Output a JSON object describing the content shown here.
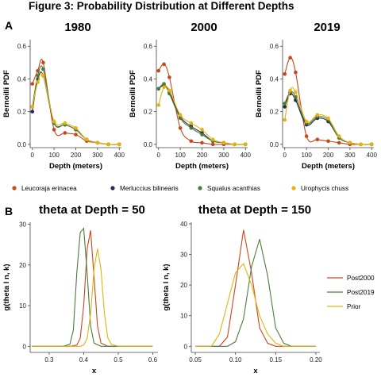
{
  "figure_title": "Figure 3: Probability Distribution at Different Depths",
  "panel_labels": [
    "A",
    "B"
  ],
  "colors": {
    "Leucoraja erinacea": "#c9461b",
    "Merluccius bilinearis": "#262a4f",
    "Squalus acanthias": "#4b7c3d",
    "Urophycis chuss": "#e5b20e",
    "Post2000": "#c9461b",
    "Post2019": "#4b7c3d",
    "Prior": "#e5b20e"
  },
  "chart_data": [
    {
      "type": "line",
      "title": "1980",
      "xlabel": "Depth (meters)",
      "ylabel": "Bernoilli PDF",
      "xlim": [
        -10,
        410
      ],
      "ylim": [
        -0.02,
        0.64
      ],
      "xticks": [
        0,
        100,
        200,
        300,
        400
      ],
      "yticks": [
        0.0,
        0.2,
        0.4,
        0.6
      ],
      "legend_position": "bottom",
      "series": [
        {
          "name": "Leucoraja erinacea",
          "x": [
            0,
            25,
            50,
            100,
            150,
            200,
            250,
            300,
            350,
            400
          ],
          "y": [
            0.37,
            0.45,
            0.5,
            0.09,
            0.07,
            0.06,
            0.02,
            0.01,
            0.0,
            0.0
          ]
        },
        {
          "name": "Merluccius bilinearis",
          "x": [
            0,
            25,
            50,
            100,
            150,
            200,
            250,
            300,
            350,
            400
          ],
          "y": [
            0.2,
            0.4,
            0.42,
            0.13,
            0.12,
            0.09,
            0.03,
            0.01,
            0.0,
            0.0
          ]
        },
        {
          "name": "Squalus acanthias",
          "x": [
            0,
            25,
            50,
            100,
            150,
            200,
            250,
            300,
            350,
            400
          ],
          "y": [
            0.23,
            0.42,
            0.46,
            0.13,
            0.12,
            0.09,
            0.03,
            0.01,
            0.0,
            0.0
          ]
        },
        {
          "name": "Urophycis chuss",
          "x": [
            0,
            25,
            50,
            100,
            150,
            200,
            250,
            300,
            350,
            400
          ],
          "y": [
            0.23,
            0.38,
            0.42,
            0.14,
            0.13,
            0.1,
            0.03,
            0.01,
            0.0,
            0.0
          ]
        }
      ]
    },
    {
      "type": "line",
      "title": "2000",
      "xlabel": "Depth (meters)",
      "ylabel": "Bernoilli PDF",
      "xlim": [
        -10,
        410
      ],
      "ylim": [
        -0.02,
        0.64
      ],
      "xticks": [
        0,
        100,
        200,
        300,
        400
      ],
      "yticks": [
        0.0,
        0.2,
        0.4,
        0.6
      ],
      "series": [
        {
          "name": "Leucoraja erinacea",
          "x": [
            0,
            25,
            50,
            100,
            150,
            200,
            250,
            300,
            350,
            400
          ],
          "y": [
            0.45,
            0.49,
            0.41,
            0.1,
            0.02,
            0.01,
            0.0,
            0.0,
            0.0,
            0.0
          ]
        },
        {
          "name": "Merluccius bilinearis",
          "x": [
            0,
            25,
            50,
            100,
            150,
            200,
            250,
            300,
            350,
            400
          ],
          "y": [
            0.34,
            0.36,
            0.32,
            0.17,
            0.11,
            0.07,
            0.02,
            0.01,
            0.0,
            0.0
          ]
        },
        {
          "name": "Squalus acanthias",
          "x": [
            0,
            25,
            50,
            100,
            150,
            200,
            250,
            300,
            350,
            400
          ],
          "y": [
            0.34,
            0.37,
            0.31,
            0.16,
            0.1,
            0.06,
            0.02,
            0.01,
            0.0,
            0.0
          ]
        },
        {
          "name": "Urophycis chuss",
          "x": [
            0,
            25,
            50,
            100,
            150,
            200,
            250,
            300,
            350,
            400
          ],
          "y": [
            0.24,
            0.35,
            0.33,
            0.18,
            0.13,
            0.09,
            0.03,
            0.01,
            0.0,
            0.0
          ]
        }
      ]
    },
    {
      "type": "line",
      "title": "2019",
      "xlabel": "Depth (meters)",
      "ylabel": "Bernoilli PDF",
      "xlim": [
        -10,
        410
      ],
      "ylim": [
        -0.02,
        0.64
      ],
      "xticks": [
        0,
        100,
        200,
        300,
        400
      ],
      "yticks": [
        0.0,
        0.2,
        0.4,
        0.6
      ],
      "series": [
        {
          "name": "Leucoraja erinacea",
          "x": [
            0,
            25,
            50,
            100,
            150,
            200,
            250,
            300,
            350,
            400
          ],
          "y": [
            0.43,
            0.53,
            0.44,
            0.05,
            0.03,
            0.02,
            0.01,
            0.0,
            0.0,
            0.0
          ]
        },
        {
          "name": "Merluccius bilinearis",
          "x": [
            0,
            25,
            50,
            100,
            150,
            200,
            250,
            300,
            350,
            400
          ],
          "y": [
            0.23,
            0.31,
            0.27,
            0.12,
            0.16,
            0.14,
            0.04,
            0.01,
            0.0,
            0.0
          ]
        },
        {
          "name": "Squalus acanthias",
          "x": [
            0,
            25,
            50,
            100,
            150,
            200,
            250,
            300,
            350,
            400
          ],
          "y": [
            0.25,
            0.32,
            0.29,
            0.13,
            0.17,
            0.15,
            0.04,
            0.01,
            0.0,
            0.0
          ]
        },
        {
          "name": "Urophycis chuss",
          "x": [
            0,
            25,
            50,
            100,
            150,
            200,
            250,
            300,
            350,
            400
          ],
          "y": [
            0.15,
            0.33,
            0.32,
            0.14,
            0.18,
            0.16,
            0.05,
            0.01,
            0.0,
            0.0
          ]
        }
      ]
    },
    {
      "type": "line",
      "title": "theta at Depth = 50",
      "xlabel": "x",
      "ylabel": "g(theta l n, k)",
      "xlim": [
        0.245,
        0.615
      ],
      "ylim": [
        -1.5,
        30.5
      ],
      "xticks": [
        0.3,
        0.4,
        0.5,
        0.6
      ],
      "yticks": [
        0,
        10,
        20,
        30
      ],
      "series": [
        {
          "name": "Post2000",
          "x": [
            0.25,
            0.36,
            0.38,
            0.39,
            0.4,
            0.41,
            0.42,
            0.43,
            0.44,
            0.45,
            0.47,
            0.6
          ],
          "y": [
            0,
            0,
            0.3,
            2,
            10,
            24,
            28.5,
            17,
            5,
            0.8,
            0,
            0
          ]
        },
        {
          "name": "Post2019",
          "x": [
            0.25,
            0.34,
            0.36,
            0.37,
            0.38,
            0.39,
            0.4,
            0.41,
            0.42,
            0.43,
            0.45,
            0.6
          ],
          "y": [
            0,
            0,
            0.5,
            4,
            18,
            28,
            29,
            18,
            5,
            0.8,
            0,
            0
          ]
        },
        {
          "name": "Prior",
          "x": [
            0.25,
            0.39,
            0.4,
            0.41,
            0.42,
            0.43,
            0.44,
            0.45,
            0.46,
            0.47,
            0.48,
            0.5,
            0.6
          ],
          "y": [
            0,
            0,
            0.3,
            2,
            8,
            19,
            24,
            19,
            8,
            2,
            0.5,
            0,
            0
          ]
        }
      ]
    },
    {
      "type": "line",
      "title": "theta at Depth = 150",
      "xlabel": "x",
      "ylabel": "g(theta l n, k)",
      "xlim": [
        0.045,
        0.205
      ],
      "ylim": [
        -2,
        40.5
      ],
      "xticks": [
        0.05,
        0.1,
        0.15,
        0.2
      ],
      "yticks": [
        0,
        10,
        20,
        30,
        40
      ],
      "legend_position": "right",
      "series": [
        {
          "name": "Post2000",
          "x": [
            0.05,
            0.08,
            0.09,
            0.1,
            0.11,
            0.12,
            0.13,
            0.14,
            0.15,
            0.2
          ],
          "y": [
            0,
            0,
            3,
            20,
            38,
            24,
            6,
            1,
            0,
            0
          ]
        },
        {
          "name": "Post2019",
          "x": [
            0.05,
            0.09,
            0.1,
            0.11,
            0.12,
            0.13,
            0.14,
            0.15,
            0.16,
            0.17,
            0.2
          ],
          "y": [
            0,
            0,
            1.5,
            9,
            26,
            35,
            23,
            6,
            1,
            0,
            0
          ]
        },
        {
          "name": "Prior",
          "x": [
            0.05,
            0.07,
            0.08,
            0.09,
            0.1,
            0.11,
            0.12,
            0.13,
            0.14,
            0.15,
            0.16,
            0.2
          ],
          "y": [
            0,
            0,
            4,
            14,
            24,
            27,
            20,
            10,
            4,
            1,
            0,
            0
          ]
        }
      ]
    }
  ]
}
